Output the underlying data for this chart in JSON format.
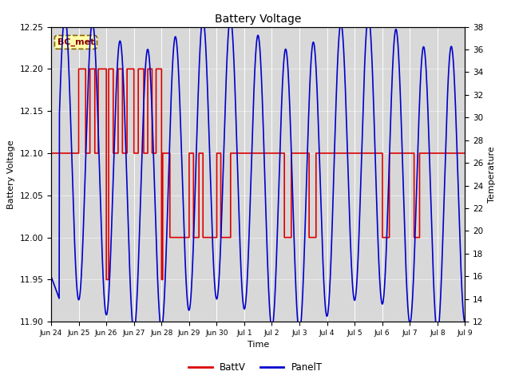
{
  "title": "Battery Voltage",
  "xlabel": "Time",
  "ylabel_left": "Battery Voltage",
  "ylabel_right": "Temperature",
  "annotation": "BC_met",
  "ylim_left": [
    11.9,
    12.25
  ],
  "ylim_right": [
    12,
    38
  ],
  "background_color": "#ffffff",
  "plot_bg_color": "#d8d8d8",
  "xtick_labels": [
    "Jun 24",
    "Jun 25",
    "Jun 26",
    "Jun 27",
    "Jun 28",
    "Jun 29",
    "Jun 30",
    "Jul 1",
    "Jul 2",
    "Jul 3",
    "Jul 4",
    "Jul 5",
    "Jul 6",
    "Jul 7",
    "Jul 8",
    "Jul 9"
  ],
  "batt_color": "#dd0000",
  "panel_color": "#0000cc",
  "legend_entries": [
    "BattV",
    "PanelT"
  ],
  "yticks_left": [
    11.9,
    11.95,
    12.0,
    12.05,
    12.1,
    12.15,
    12.2,
    12.25
  ],
  "yticks_right": [
    12,
    14,
    16,
    18,
    20,
    22,
    24,
    26,
    28,
    30,
    32,
    34,
    36,
    38
  ]
}
